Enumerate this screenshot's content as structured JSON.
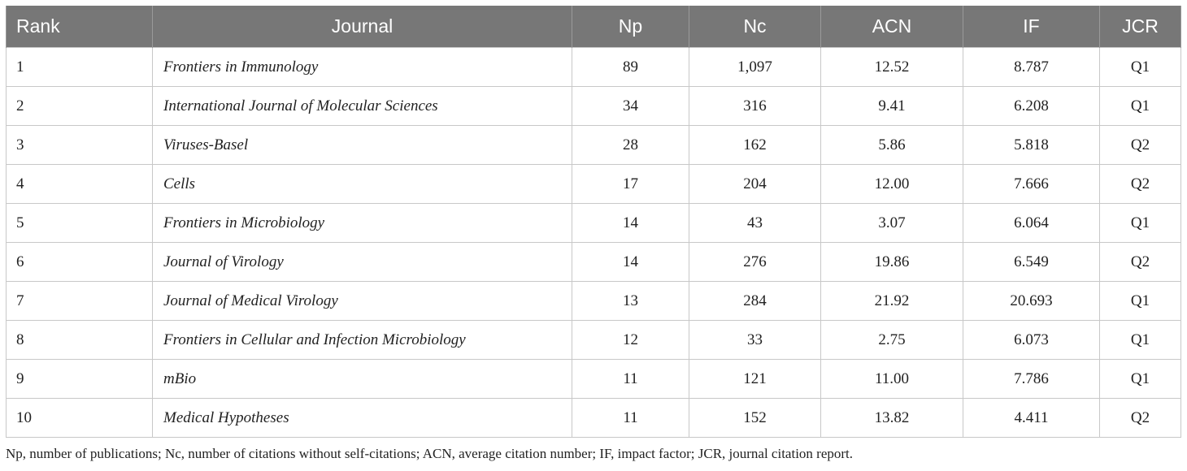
{
  "table": {
    "headers": {
      "rank": "Rank",
      "journal": "Journal",
      "np": "Np",
      "nc": "Nc",
      "acn": "ACN",
      "if": "IF",
      "jcr": "JCR"
    },
    "rows": [
      {
        "rank": "1",
        "journal": "Frontiers in Immunology",
        "np": "89",
        "nc": "1,097",
        "acn": "12.52",
        "if": "8.787",
        "jcr": "Q1"
      },
      {
        "rank": "2",
        "journal": "International Journal of Molecular Sciences",
        "np": "34",
        "nc": "316",
        "acn": "9.41",
        "if": "6.208",
        "jcr": "Q1"
      },
      {
        "rank": "3",
        "journal": "Viruses-Basel",
        "np": "28",
        "nc": "162",
        "acn": "5.86",
        "if": "5.818",
        "jcr": "Q2"
      },
      {
        "rank": "4",
        "journal": "Cells",
        "np": "17",
        "nc": "204",
        "acn": "12.00",
        "if": "7.666",
        "jcr": "Q2"
      },
      {
        "rank": "5",
        "journal": "Frontiers in Microbiology",
        "np": "14",
        "nc": "43",
        "acn": "3.07",
        "if": "6.064",
        "jcr": "Q1"
      },
      {
        "rank": "6",
        "journal": "Journal of Virology",
        "np": "14",
        "nc": "276",
        "acn": "19.86",
        "if": "6.549",
        "jcr": "Q2"
      },
      {
        "rank": "7",
        "journal": "Journal of Medical Virology",
        "np": "13",
        "nc": "284",
        "acn": "21.92",
        "if": "20.693",
        "jcr": "Q1"
      },
      {
        "rank": "8",
        "journal": "Frontiers in Cellular and Infection Microbiology",
        "np": "12",
        "nc": "33",
        "acn": "2.75",
        "if": "6.073",
        "jcr": "Q1"
      },
      {
        "rank": "9",
        "journal": "mBio",
        "np": "11",
        "nc": "121",
        "acn": "11.00",
        "if": "7.786",
        "jcr": "Q1"
      },
      {
        "rank": "10",
        "journal": "Medical Hypotheses",
        "np": "11",
        "nc": "152",
        "acn": "13.82",
        "if": "4.411",
        "jcr": "Q2"
      }
    ]
  },
  "footnote": "Np, number of publications; Nc, number of citations without self-citations; ACN, average citation number; IF, impact factor; JCR, journal citation report.",
  "colors": {
    "header_background": "#777777",
    "header_text": "#ffffff",
    "grid_lines": "#c8c8c8",
    "body_text": "#222222"
  }
}
